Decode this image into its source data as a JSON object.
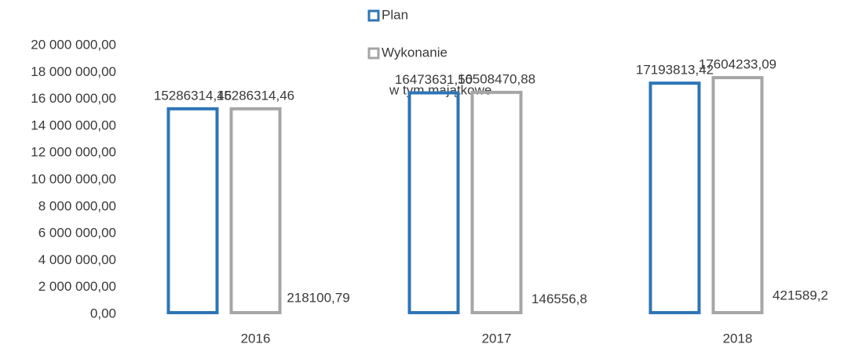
{
  "chart_data": {
    "type": "bar",
    "categories": [
      "2016",
      "2017",
      "2018"
    ],
    "series": [
      {
        "name": "Plan",
        "color": "#2e75b6",
        "values": [
          15286314.46,
          16473631.5,
          17193813.42
        ],
        "value_labels": [
          "15286314,46",
          "16473631,50",
          "17193813,42"
        ]
      },
      {
        "name": "Wykonanie",
        "color": "#a6a6a6",
        "values": [
          15286314.46,
          16508470.88,
          17604233.09
        ],
        "value_labels": [
          "15286314,46",
          "16508470,88",
          "17604233,09"
        ]
      },
      {
        "name": "w tym majątkowe",
        "values": [
          218100.79,
          146556.8,
          421589.2
        ],
        "value_labels": [
          "218100,79",
          "146556,8",
          "421589,2"
        ]
      }
    ],
    "ylim": [
      0,
      20000000
    ],
    "yticks": [
      {
        "value": 0,
        "label": "0,00"
      },
      {
        "value": 2000000,
        "label": "2 000 000,00"
      },
      {
        "value": 4000000,
        "label": "4 000 000,00"
      },
      {
        "value": 6000000,
        "label": "6 000 000,00"
      },
      {
        "value": 8000000,
        "label": "8 000 000,00"
      },
      {
        "value": 10000000,
        "label": "10 000 000,00"
      },
      {
        "value": 12000000,
        "label": "12 000 000,00"
      },
      {
        "value": 14000000,
        "label": "14 000 000,00"
      },
      {
        "value": 16000000,
        "label": "16 000 000,00"
      },
      {
        "value": 18000000,
        "label": "18 000 000,00"
      },
      {
        "value": 20000000,
        "label": "20 000 000,00"
      }
    ],
    "grid": false
  }
}
